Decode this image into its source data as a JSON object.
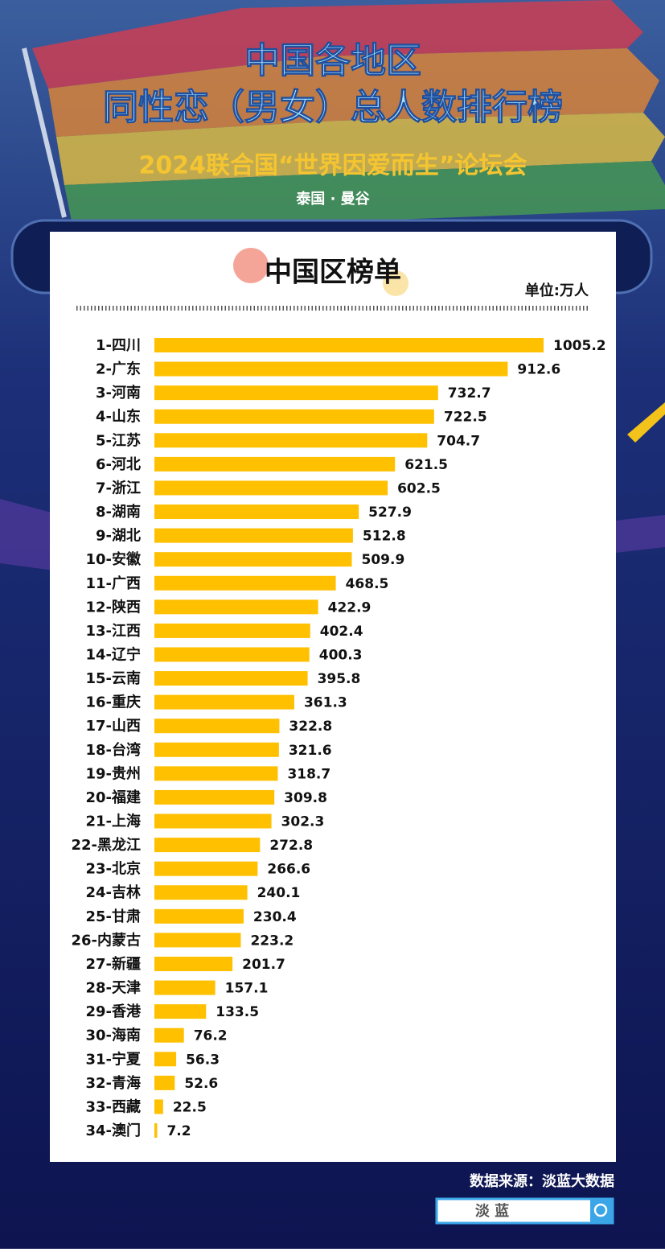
{
  "chart_data": {
    "type": "bar",
    "orientation": "horizontal",
    "title": [
      "中国各地区",
      "同性恋（男女）总人数排行榜"
    ],
    "subtitle": "2024联合国“世界因爱而生”论坛会",
    "location": "泰国 · 曼谷",
    "panel_title": "中国区榜单",
    "unit": "单位:万人",
    "categories": [
      "1-四川",
      "2-广东",
      "3-河南",
      "4-山东",
      "5-江苏",
      "6-河北",
      "7-浙江",
      "8-湖南",
      "9-湖北",
      "10-安徽",
      "11-广西",
      "12-陕西",
      "13-江西",
      "14-辽宁",
      "15-云南",
      "16-重庆",
      "17-山西",
      "18-台湾",
      "19-贵州",
      "20-福建",
      "21-上海",
      "22-黑龙江",
      "23-北京",
      "24-吉林",
      "25-甘肃",
      "26-内蒙古",
      "27-新疆",
      "28-天津",
      "29-香港",
      "30-海南",
      "31-宁夏",
      "32-青海",
      "33-西藏",
      "34-澳门"
    ],
    "values": [
      1005.2,
      912.6,
      732.7,
      722.5,
      704.7,
      621.5,
      602.5,
      527.9,
      512.8,
      509.9,
      468.5,
      422.9,
      402.4,
      400.3,
      395.8,
      361.3,
      322.8,
      321.6,
      318.7,
      309.8,
      302.3,
      272.8,
      266.6,
      240.1,
      230.4,
      223.2,
      201.7,
      157.1,
      133.5,
      76.2,
      56.3,
      52.6,
      22.5,
      7.2
    ],
    "color": "#ffc000",
    "source": "数据来源：淡蓝大数据",
    "search_box": "淡 蓝"
  }
}
